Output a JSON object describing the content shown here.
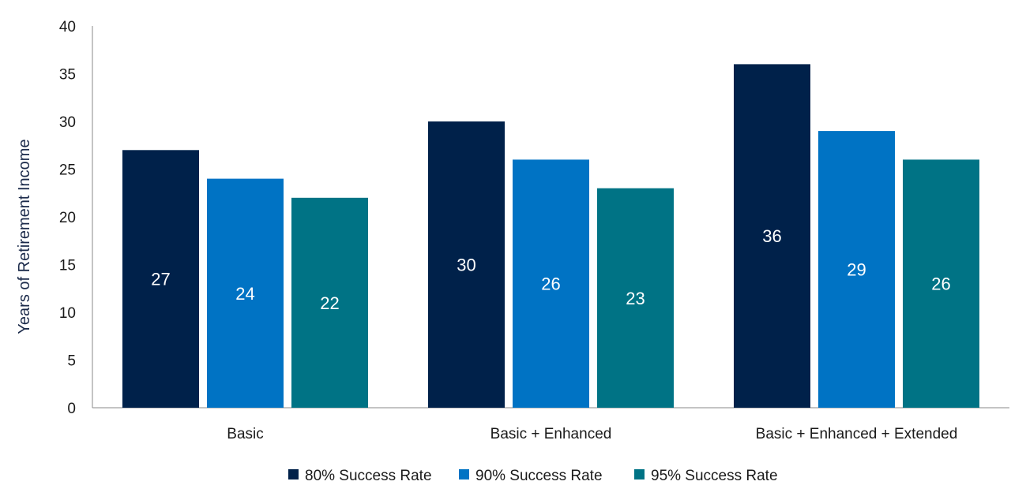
{
  "chart_data": {
    "type": "bar",
    "title": "",
    "xlabel": "",
    "ylabel": "Years of Retirement Income",
    "ylim": [
      0,
      40
    ],
    "yticks": [
      0,
      5,
      10,
      15,
      20,
      25,
      30,
      35,
      40
    ],
    "grid": false,
    "legend": "bottom",
    "categories": [
      "Basic",
      "Basic + Enhanced",
      "Basic + Enhanced + Extended"
    ],
    "series": [
      {
        "name": "80% Success Rate",
        "values": [
          27,
          30,
          36
        ],
        "color": "#00214a"
      },
      {
        "name": "90% Success Rate",
        "values": [
          24,
          26,
          29
        ],
        "color": "#0073c4"
      },
      {
        "name": "95% Success Rate",
        "values": [
          22,
          23,
          26
        ],
        "color": "#007385"
      }
    ]
  }
}
